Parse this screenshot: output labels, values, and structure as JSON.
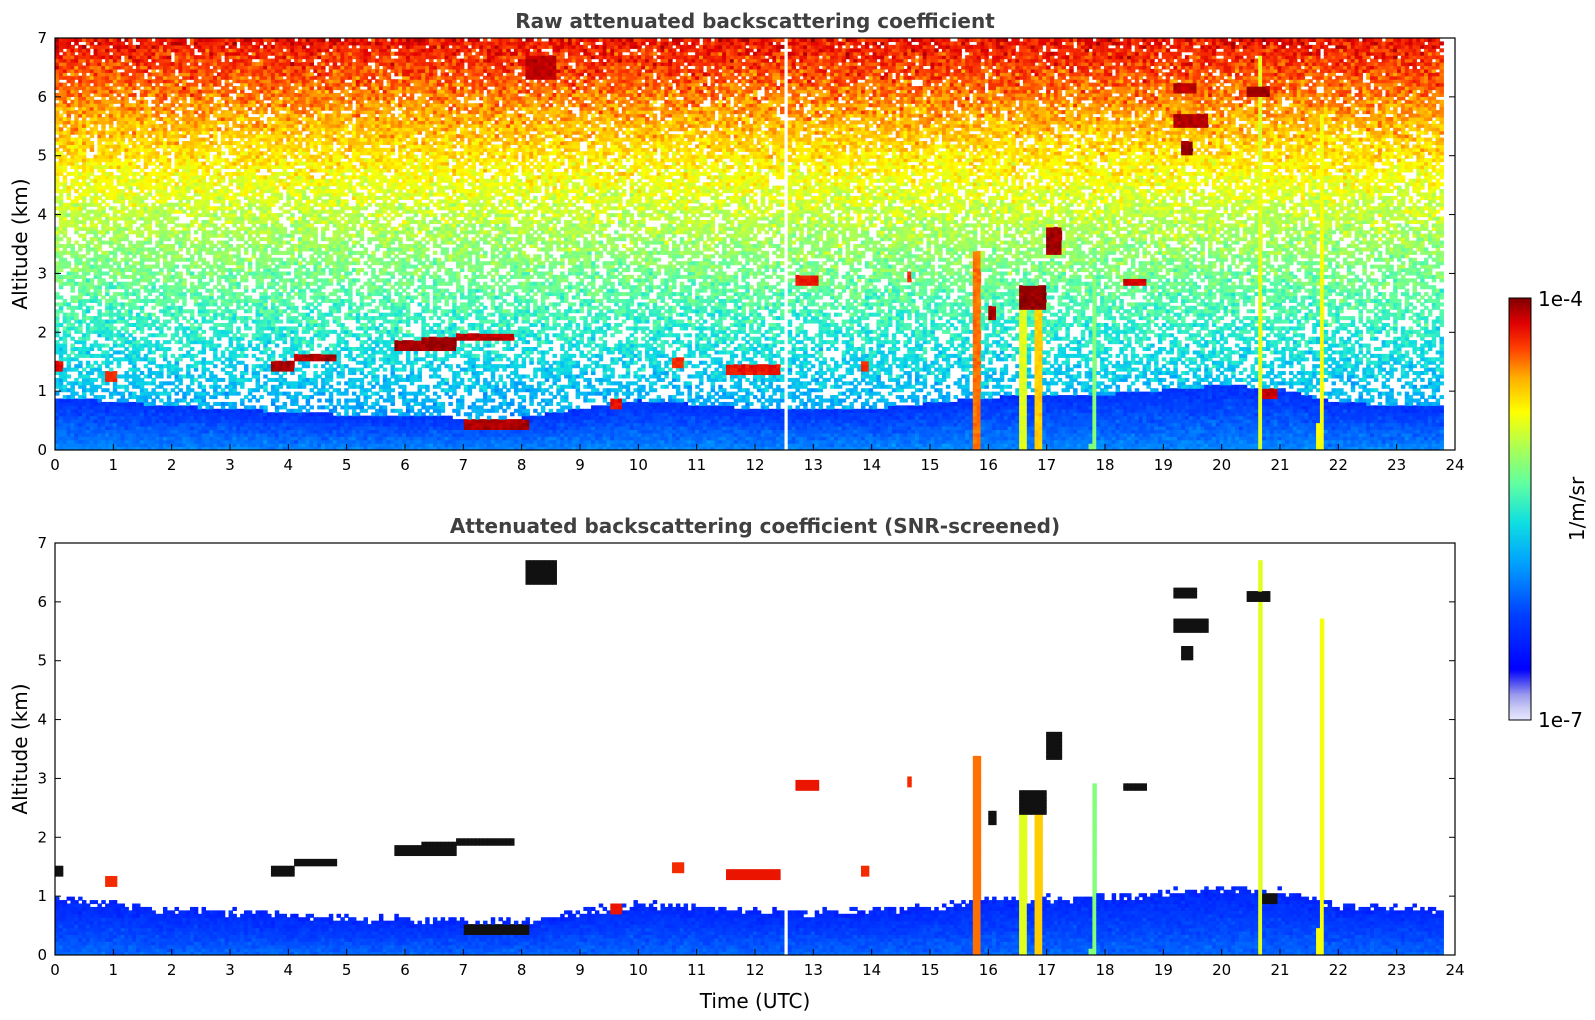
{
  "chart_data": [
    {
      "type": "heatmap",
      "title": "Raw attenuated backscattering coefficient",
      "xlabel": "",
      "ylabel": "Altitude (km)",
      "xlim": [
        0,
        24
      ],
      "ylim": [
        0,
        7
      ],
      "xticks": [
        0,
        1,
        2,
        3,
        4,
        5,
        6,
        7,
        8,
        9,
        10,
        11,
        12,
        13,
        14,
        15,
        16,
        17,
        18,
        19,
        20,
        21,
        22,
        23,
        24
      ],
      "yticks": [
        0,
        1,
        2,
        3,
        4,
        5,
        6,
        7
      ],
      "data_extent_x": [
        0,
        23.8
      ],
      "gap_time": 12.5,
      "colormap": "jet",
      "screened": false,
      "features": {
        "boundary_layer_top_km": [
          [
            0,
            0.9
          ],
          [
            2,
            0.75
          ],
          [
            5,
            0.6
          ],
          [
            7,
            0.55
          ],
          [
            8,
            0.55
          ],
          [
            9,
            0.7
          ],
          [
            10,
            0.85
          ],
          [
            12,
            0.7
          ],
          [
            14,
            0.7
          ],
          [
            16,
            0.9
          ],
          [
            18,
            0.95
          ],
          [
            20,
            1.1
          ],
          [
            21,
            1.05
          ],
          [
            22,
            0.8
          ],
          [
            23.8,
            0.75
          ]
        ],
        "cloud_segments": [
          {
            "t": [
              0.0,
              0.15
            ],
            "z": 1.42,
            "dz": 0.07,
            "level": 0.95
          },
          {
            "t": [
              0.85,
              1.05
            ],
            "z": 1.25,
            "dz": 0.07,
            "level": 0.9
          },
          {
            "t": [
              3.7,
              4.1
            ],
            "z": 1.45,
            "dz": 0.09,
            "level": 0.97
          },
          {
            "t": [
              4.1,
              4.8
            ],
            "z": 1.58,
            "dz": 0.08,
            "level": 0.97
          },
          {
            "t": [
              5.8,
              6.3
            ],
            "z": 1.78,
            "dz": 0.1,
            "level": 0.98
          },
          {
            "t": [
              6.3,
              6.9
            ],
            "z": 1.8,
            "dz": 0.1,
            "level": 0.98
          },
          {
            "t": [
              6.9,
              7.9
            ],
            "z": 1.92,
            "dz": 0.06,
            "level": 0.96
          },
          {
            "t": [
              7.0,
              8.1
            ],
            "z": 0.45,
            "dz": 0.09,
            "level": 0.97
          },
          {
            "t": [
              9.5,
              9.75
            ],
            "z": 0.8,
            "dz": 0.08,
            "level": 0.92
          },
          {
            "t": [
              10.6,
              10.8
            ],
            "z": 1.5,
            "dz": 0.1,
            "level": 0.9
          },
          {
            "t": [
              11.5,
              12.4
            ],
            "z": 1.35,
            "dz": 0.08,
            "level": 0.92
          },
          {
            "t": [
              12.7,
              13.1
            ],
            "z": 2.9,
            "dz": 0.08,
            "level": 0.92
          },
          {
            "t": [
              13.8,
              13.95
            ],
            "z": 1.45,
            "dz": 0.08,
            "level": 0.9
          },
          {
            "t": [
              14.6,
              14.7
            ],
            "z": 2.95,
            "dz": 0.08,
            "level": 0.9
          },
          {
            "t": [
              16.0,
              16.15
            ],
            "z": 2.33,
            "dz": 0.1,
            "level": 0.97
          },
          {
            "t": [
              16.5,
              17.0
            ],
            "z": 2.6,
            "dz": 0.22,
            "level": 0.99
          },
          {
            "t": [
              17.0,
              17.25
            ],
            "z": 3.55,
            "dz": 0.25,
            "level": 0.98
          },
          {
            "t": [
              18.3,
              18.7
            ],
            "z": 2.85,
            "dz": 0.07,
            "level": 0.95
          },
          {
            "t": [
              19.2,
              19.8
            ],
            "z": 5.6,
            "dz": 0.1,
            "level": 0.97
          },
          {
            "t": [
              19.3,
              19.5
            ],
            "z": 5.12,
            "dz": 0.12,
            "level": 0.99
          },
          {
            "t": [
              19.2,
              19.6
            ],
            "z": 6.15,
            "dz": 0.09,
            "level": 0.96
          },
          {
            "t": [
              20.4,
              20.8
            ],
            "z": 6.1,
            "dz": 0.1,
            "level": 0.98
          },
          {
            "t": [
              20.7,
              20.95
            ],
            "z": 0.95,
            "dz": 0.08,
            "level": 0.95
          },
          {
            "t": [
              8.05,
              8.6
            ],
            "z": 6.5,
            "dz": 0.2,
            "level": 0.96
          }
        ],
        "plumes": [
          {
            "t": 15.8,
            "z_top": 3.4,
            "width": 0.16,
            "level": 0.85
          },
          {
            "t": 16.6,
            "z_top": 2.5,
            "width": 0.12,
            "level": 0.7
          },
          {
            "t": 16.85,
            "z_top": 2.8,
            "width": 0.12,
            "level": 0.78
          },
          {
            "t": 17.8,
            "z_top": 2.9,
            "width": 0.1,
            "level": 0.6
          },
          {
            "t": 20.65,
            "z_top": 6.7,
            "width": 0.08,
            "level": 0.7
          },
          {
            "t": 21.7,
            "z_top": 5.7,
            "width": 0.1,
            "level": 0.72
          }
        ]
      }
    },
    {
      "type": "heatmap",
      "title": "Attenuated backscattering coefficient (SNR-screened)",
      "xlabel": "Time (UTC)",
      "ylabel": "Altitude (km)",
      "xlim": [
        0,
        24
      ],
      "ylim": [
        0,
        7
      ],
      "xticks": [
        0,
        1,
        2,
        3,
        4,
        5,
        6,
        7,
        8,
        9,
        10,
        11,
        12,
        13,
        14,
        15,
        16,
        17,
        18,
        19,
        20,
        21,
        22,
        23,
        24
      ],
      "yticks": [
        0,
        1,
        2,
        3,
        4,
        5,
        6,
        7
      ],
      "data_extent_x": [
        0,
        23.8
      ],
      "gap_time": 12.5,
      "colormap": "jet",
      "screened": true
    }
  ],
  "colorbar": {
    "max_label": "1e-4",
    "min_label": "1e-7",
    "label": "1/m/sr",
    "colormap": "jet"
  },
  "colors": {
    "axis": "#000000",
    "title": "#404040",
    "screened_cloud_core": "#111111"
  }
}
